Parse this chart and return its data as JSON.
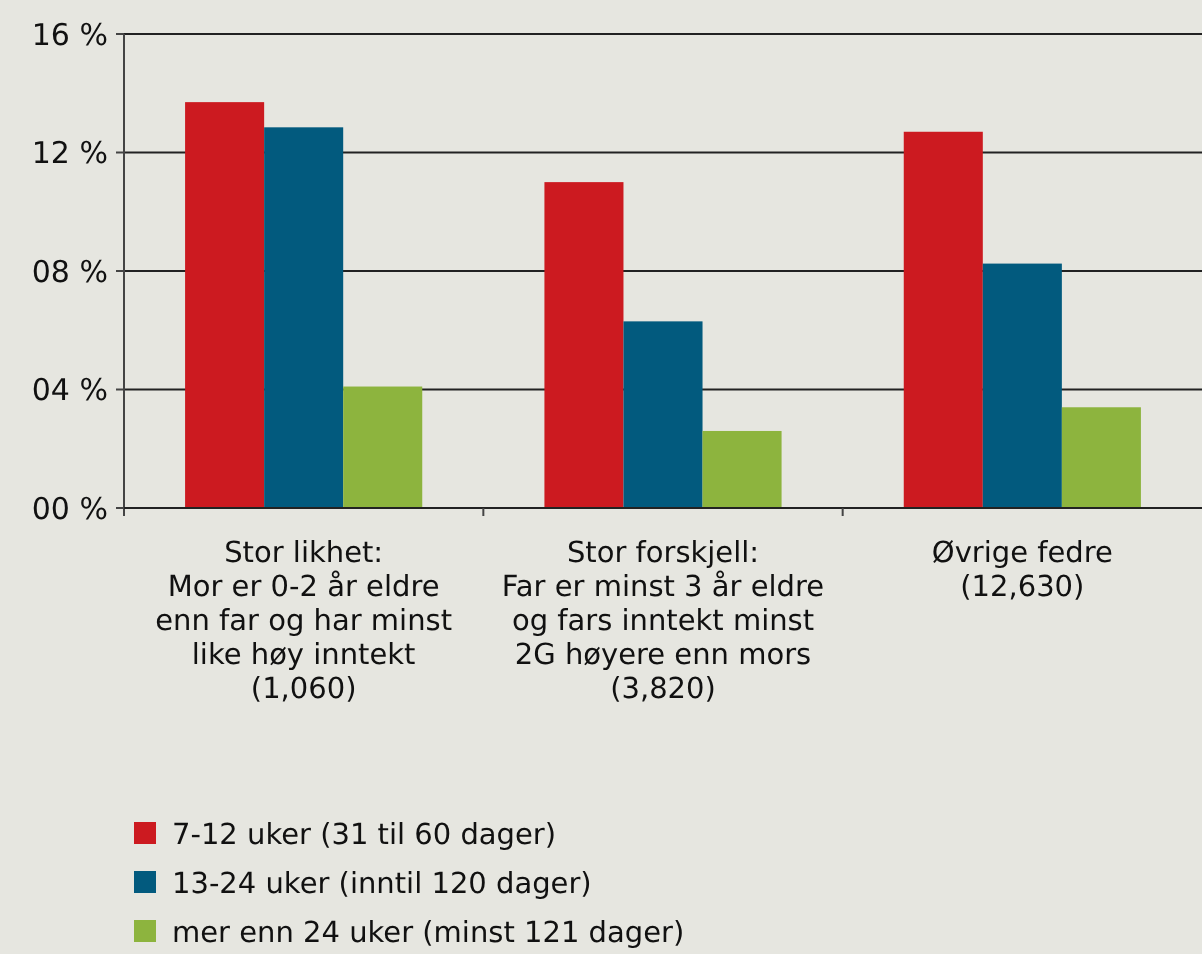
{
  "chart_data": {
    "type": "bar",
    "categories": [
      "Stor likhet:\nMor er 0-2 år eldre\nenn far og har minst\nlike høy inntekt\n(1,060)",
      "Stor forskjell:\nFar er minst 3 år eldre\nog fars inntekt minst\n2G høyere enn mors\n(3,820)",
      "Øvrige fedre\n(12,630)"
    ],
    "series": [
      {
        "name": "7-12 uker (31 til 60 dager)",
        "color": "#cc1a20",
        "values": [
          13.7,
          11.0,
          12.7
        ]
      },
      {
        "name": "13-24 uker (inntil 120 dager)",
        "color": "#025a7e",
        "values": [
          12.85,
          6.3,
          8.25
        ]
      },
      {
        "name": "mer enn 24 uker (minst 121 dager)",
        "color": "#8db43e",
        "values": [
          4.1,
          2.6,
          3.4
        ]
      }
    ],
    "ylim": [
      0,
      16
    ],
    "yticks": [
      {
        "value": 0,
        "label": "00 %"
      },
      {
        "value": 4,
        "label": "04 %"
      },
      {
        "value": 8,
        "label": "08 %"
      },
      {
        "value": 12,
        "label": "12 %"
      },
      {
        "value": 16,
        "label": "16 %"
      }
    ],
    "grid": "y",
    "legend": "bottom"
  }
}
